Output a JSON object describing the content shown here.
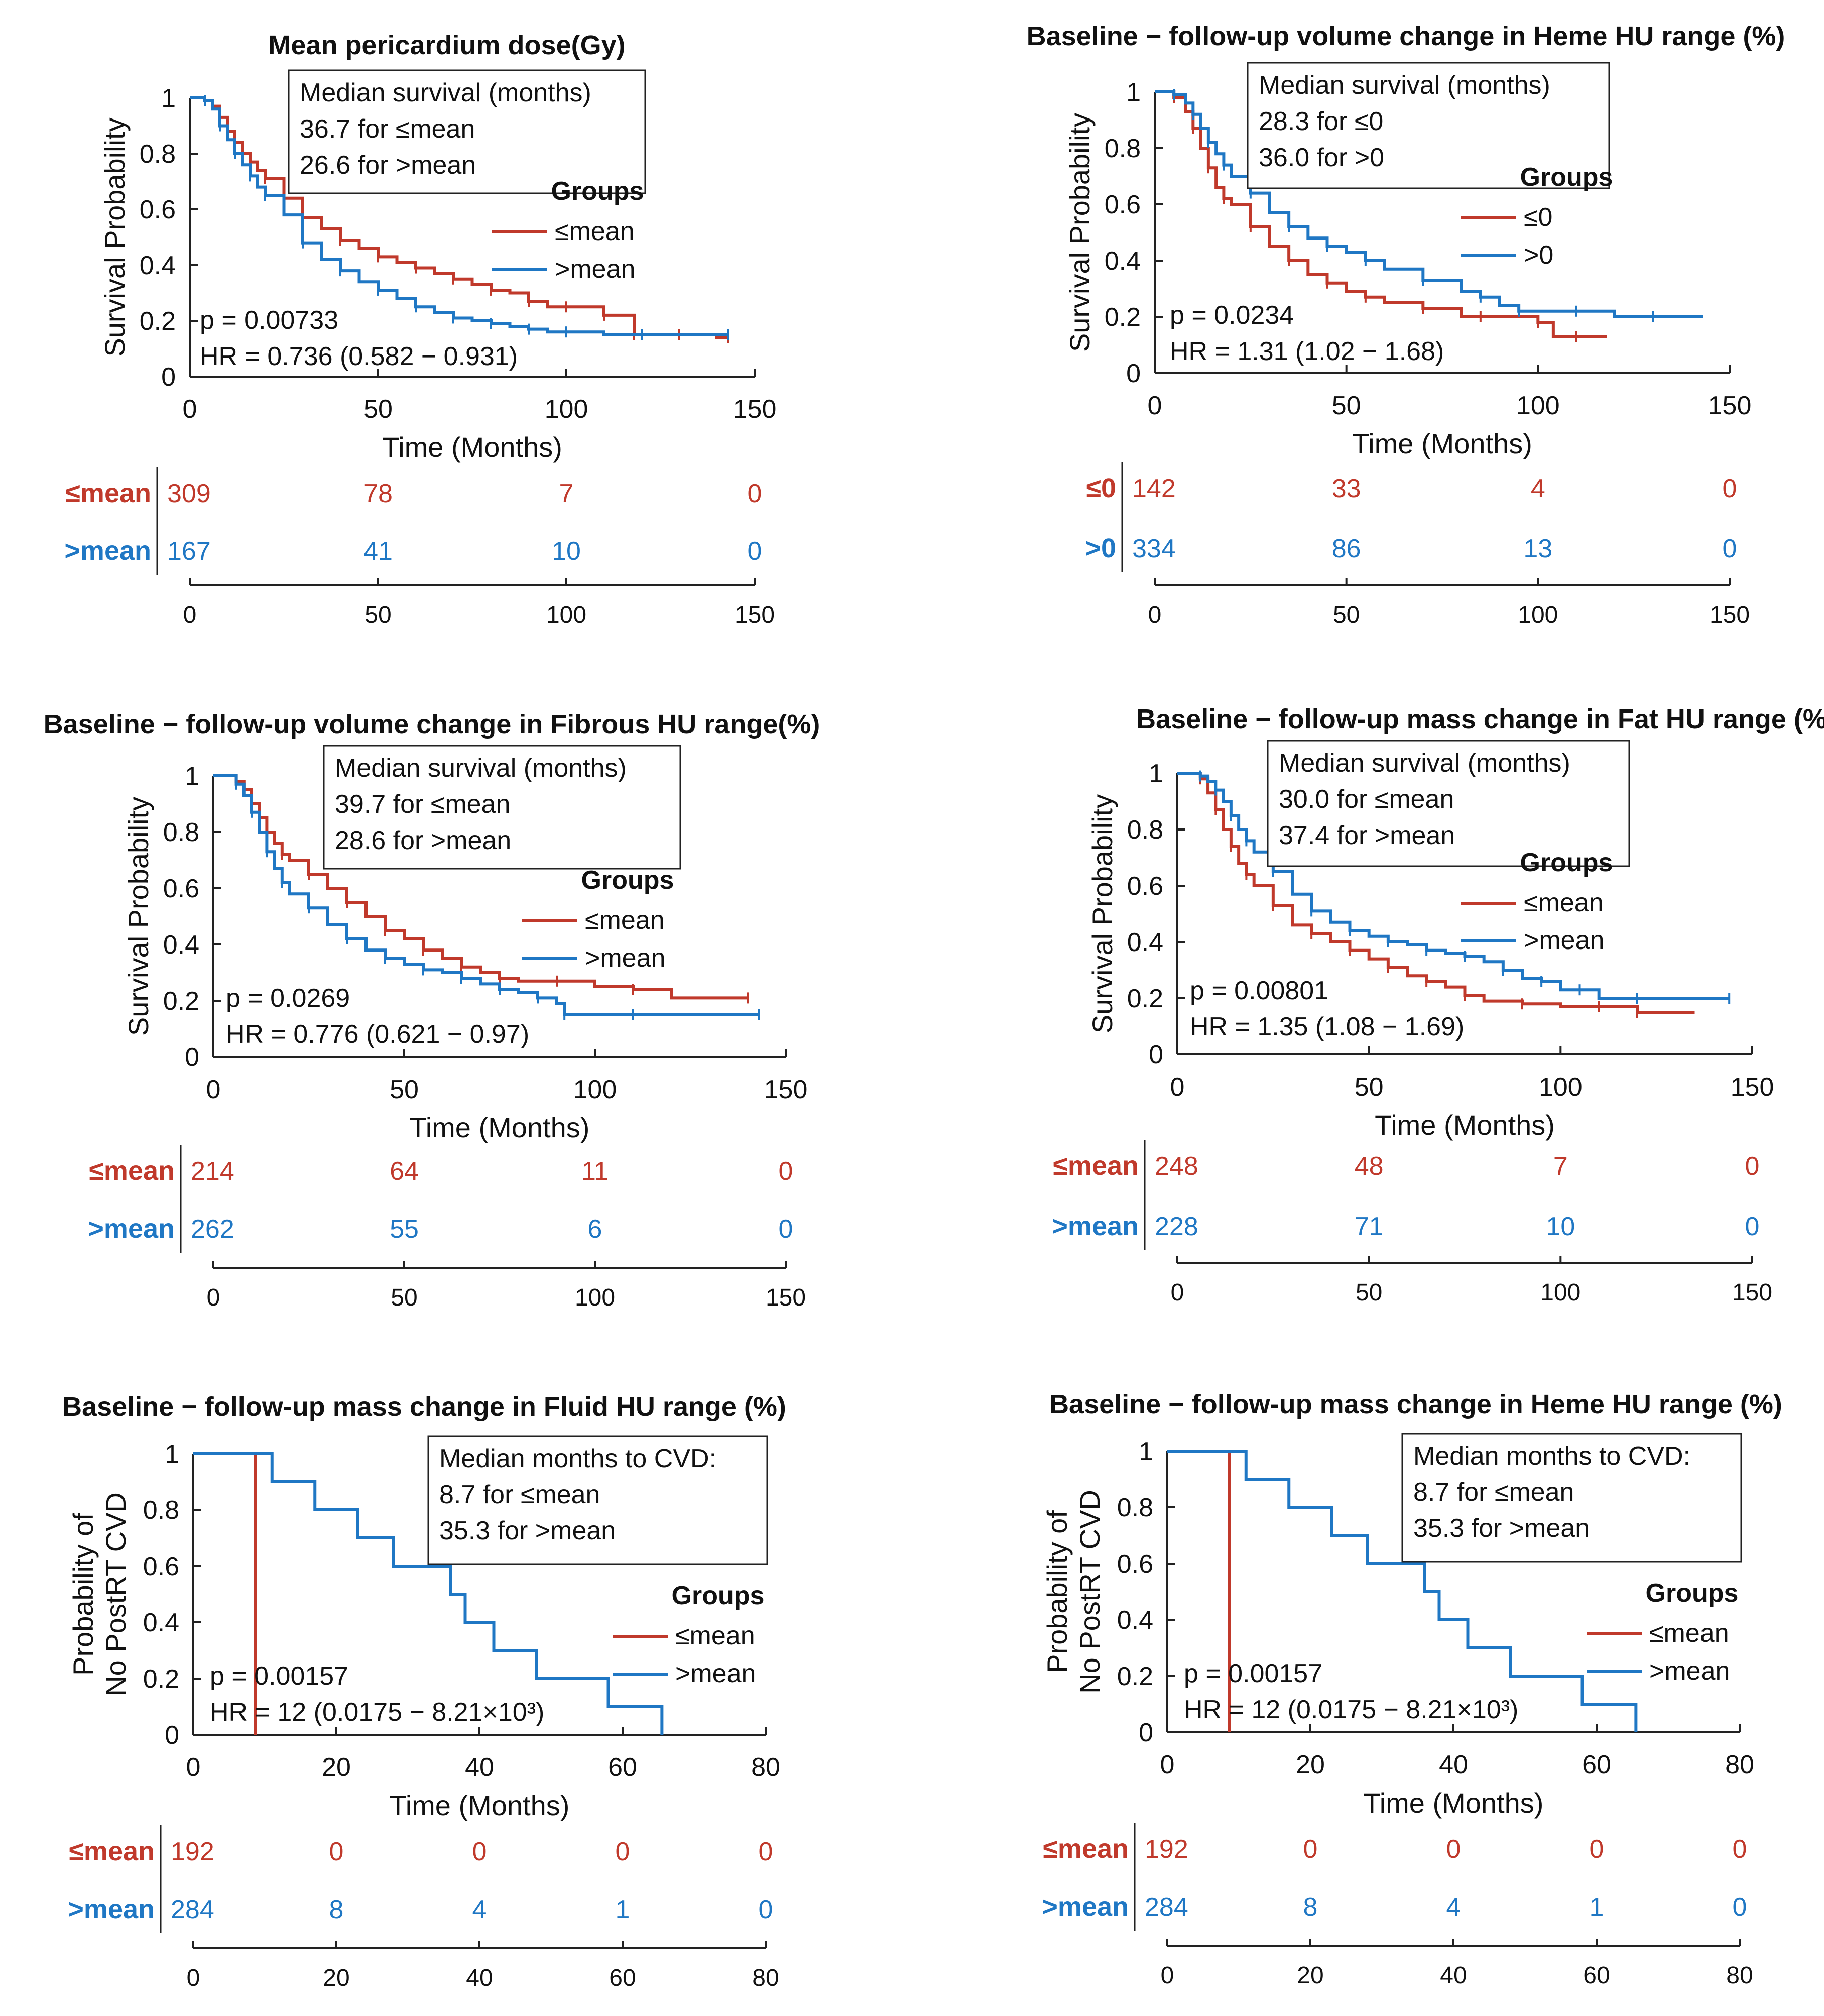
{
  "colors": {
    "group1": "#c0392b",
    "group2": "#1f77c4",
    "axis": "#222222",
    "text": "#111111"
  },
  "chart_data": [
    {
      "type": "line",
      "title": "Mean pericardium dose(Gy)",
      "ylabel_lines": [
        "Survival Probability"
      ],
      "xlabel": "Time (Months)",
      "xlim": [
        0,
        150
      ],
      "xticks": [
        0,
        50,
        100,
        150
      ],
      "ylim": [
        0,
        1
      ],
      "yticks": [
        "0",
        "0.2",
        "0.4",
        "0.6",
        "0.8",
        "1"
      ],
      "median_box": [
        "Median survival (months)",
        "36.7 for ≤mean",
        "26.6 for >mean"
      ],
      "legend_title": "Groups",
      "stats": [
        "p = 0.00733",
        "HR = 0.736 (0.582 − 0.931)"
      ],
      "series": [
        {
          "name": "≤mean",
          "color": "#c0392b",
          "x": [
            0,
            4,
            6,
            8,
            10,
            12,
            14,
            16,
            18,
            20,
            25,
            30,
            35,
            40,
            45,
            50,
            55,
            60,
            65,
            70,
            75,
            80,
            85,
            90,
            95,
            100,
            105,
            110,
            115,
            118,
            120,
            130,
            140,
            143
          ],
          "y": [
            1,
            0.99,
            0.97,
            0.93,
            0.88,
            0.84,
            0.8,
            0.77,
            0.74,
            0.71,
            0.64,
            0.57,
            0.53,
            0.49,
            0.46,
            0.43,
            0.41,
            0.39,
            0.37,
            0.35,
            0.33,
            0.31,
            0.3,
            0.27,
            0.25,
            0.25,
            0.25,
            0.22,
            0.22,
            0.15,
            0.15,
            0.15,
            0.14,
            0.14
          ]
        },
        {
          "name": ">mean",
          "color": "#1f77c4",
          "x": [
            0,
            4,
            6,
            8,
            10,
            12,
            14,
            16,
            18,
            20,
            25,
            30,
            35,
            40,
            45,
            50,
            55,
            60,
            65,
            70,
            75,
            80,
            85,
            90,
            95,
            100,
            110,
            120,
            130,
            143
          ],
          "y": [
            1,
            0.99,
            0.96,
            0.9,
            0.85,
            0.8,
            0.76,
            0.72,
            0.68,
            0.65,
            0.58,
            0.48,
            0.42,
            0.38,
            0.34,
            0.31,
            0.28,
            0.25,
            0.23,
            0.21,
            0.2,
            0.19,
            0.18,
            0.17,
            0.16,
            0.16,
            0.15,
            0.15,
            0.15,
            0.15
          ]
        }
      ],
      "risk_table": {
        "rows": [
          {
            "label": "≤mean",
            "values": [
              309,
              78,
              7,
              0
            ]
          },
          {
            "label": ">mean",
            "values": [
              167,
              41,
              10,
              0
            ]
          }
        ],
        "xticks": [
          0,
          50,
          100,
          150
        ]
      }
    },
    {
      "type": "line",
      "title": "Baseline − follow-up volume change in Heme HU range (%)",
      "ylabel_lines": [
        "Survival Probability"
      ],
      "xlabel": "Time (Months)",
      "xlim": [
        0,
        150
      ],
      "xticks": [
        0,
        50,
        100,
        150
      ],
      "ylim": [
        0,
        1
      ],
      "yticks": [
        "0",
        "0.2",
        "0.4",
        "0.6",
        "0.8",
        "1"
      ],
      "median_box": [
        "Median survival (months)",
        "28.3 for ≤0",
        "36.0 for >0"
      ],
      "legend_title": "Groups",
      "stats": [
        "p = 0.0234",
        "HR = 1.31 (1.02 − 1.68)"
      ],
      "series": [
        {
          "name": "≤0",
          "color": "#c0392b",
          "x": [
            0,
            5,
            8,
            10,
            12,
            14,
            16,
            18,
            20,
            25,
            30,
            35,
            40,
            45,
            50,
            55,
            60,
            70,
            80,
            85,
            90,
            100,
            104,
            110,
            118
          ],
          "y": [
            1,
            0.98,
            0.93,
            0.87,
            0.8,
            0.73,
            0.66,
            0.62,
            0.6,
            0.52,
            0.45,
            0.4,
            0.35,
            0.32,
            0.29,
            0.27,
            0.25,
            0.23,
            0.2,
            0.2,
            0.2,
            0.18,
            0.13,
            0.13,
            0.13
          ]
        },
        {
          "name": ">0",
          "color": "#1f77c4",
          "x": [
            0,
            5,
            8,
            10,
            12,
            14,
            16,
            18,
            20,
            25,
            30,
            35,
            40,
            45,
            50,
            55,
            60,
            70,
            80,
            85,
            90,
            95,
            100,
            110,
            120,
            130,
            143
          ],
          "y": [
            1,
            0.99,
            0.96,
            0.92,
            0.87,
            0.82,
            0.78,
            0.74,
            0.7,
            0.64,
            0.57,
            0.52,
            0.48,
            0.45,
            0.43,
            0.4,
            0.37,
            0.33,
            0.29,
            0.27,
            0.24,
            0.22,
            0.22,
            0.22,
            0.2,
            0.2,
            0.2
          ]
        }
      ],
      "risk_table": {
        "rows": [
          {
            "label": "≤0",
            "values": [
              142,
              33,
              4,
              0
            ]
          },
          {
            "label": ">0",
            "values": [
              334,
              86,
              13,
              0
            ]
          }
        ],
        "xticks": [
          0,
          50,
          100,
          150
        ]
      }
    },
    {
      "type": "line",
      "title": "Baseline − follow-up volume change in Fibrous HU range(%)",
      "ylabel_lines": [
        "Survival Probability"
      ],
      "xlabel": "Time (Months)",
      "xlim": [
        0,
        150
      ],
      "xticks": [
        0,
        50,
        100,
        150
      ],
      "ylim": [
        0,
        1
      ],
      "yticks": [
        "0",
        "0.2",
        "0.4",
        "0.6",
        "0.8",
        "1"
      ],
      "median_box": [
        "Median survival (months)",
        "39.7 for ≤mean",
        "28.6 for >mean"
      ],
      "legend_title": "Groups",
      "stats": [
        "p = 0.0269",
        "HR = 0.776 (0.621 − 0.97)"
      ],
      "series": [
        {
          "name": "≤mean",
          "color": "#c0392b",
          "x": [
            0,
            6,
            8,
            10,
            12,
            14,
            16,
            18,
            20,
            25,
            30,
            35,
            40,
            45,
            50,
            55,
            60,
            65,
            70,
            75,
            80,
            90,
            100,
            110,
            120,
            140
          ],
          "y": [
            1,
            0.98,
            0.95,
            0.9,
            0.85,
            0.8,
            0.76,
            0.72,
            0.7,
            0.65,
            0.6,
            0.55,
            0.5,
            0.45,
            0.42,
            0.38,
            0.35,
            0.32,
            0.3,
            0.28,
            0.27,
            0.27,
            0.25,
            0.24,
            0.21,
            0.21
          ]
        },
        {
          "name": ">mean",
          "color": "#1f77c4",
          "x": [
            0,
            6,
            8,
            10,
            12,
            14,
            16,
            18,
            20,
            25,
            30,
            35,
            40,
            45,
            50,
            55,
            60,
            65,
            70,
            75,
            80,
            85,
            90,
            92,
            100,
            110,
            120,
            143
          ],
          "y": [
            1,
            0.97,
            0.93,
            0.87,
            0.8,
            0.73,
            0.67,
            0.62,
            0.58,
            0.53,
            0.47,
            0.42,
            0.38,
            0.35,
            0.33,
            0.31,
            0.3,
            0.28,
            0.26,
            0.24,
            0.23,
            0.21,
            0.19,
            0.15,
            0.15,
            0.15,
            0.15,
            0.15
          ]
        }
      ],
      "risk_table": {
        "rows": [
          {
            "label": "≤mean",
            "values": [
              214,
              64,
              11,
              0
            ]
          },
          {
            "label": ">mean",
            "values": [
              262,
              55,
              6,
              0
            ]
          }
        ],
        "xticks": [
          0,
          50,
          100,
          150
        ]
      }
    },
    {
      "type": "line",
      "title": "Baseline − follow-up mass change in Fat HU range (%)",
      "ylabel_lines": [
        "Survival Probability"
      ],
      "xlabel": "Time (Months)",
      "xlim": [
        0,
        150
      ],
      "xticks": [
        0,
        50,
        100,
        150
      ],
      "ylim": [
        0,
        1
      ],
      "yticks": [
        "0",
        "0.2",
        "0.4",
        "0.6",
        "0.8",
        "1"
      ],
      "median_box": [
        "Median survival (months)",
        "30.0 for ≤mean",
        "37.4 for >mean"
      ],
      "legend_title": "Groups",
      "stats": [
        "p = 0.00801",
        "HR = 1.35 (1.08 − 1.69)"
      ],
      "series": [
        {
          "name": "≤mean",
          "color": "#c0392b",
          "x": [
            0,
            6,
            8,
            10,
            12,
            14,
            16,
            18,
            20,
            25,
            30,
            35,
            40,
            45,
            50,
            55,
            60,
            65,
            70,
            75,
            80,
            90,
            100,
            110,
            117,
            120,
            135
          ],
          "y": [
            1,
            0.98,
            0.93,
            0.87,
            0.8,
            0.74,
            0.68,
            0.64,
            0.6,
            0.53,
            0.46,
            0.43,
            0.4,
            0.37,
            0.34,
            0.31,
            0.28,
            0.26,
            0.24,
            0.21,
            0.19,
            0.18,
            0.17,
            0.17,
            0.17,
            0.15,
            0.15
          ]
        },
        {
          "name": ">mean",
          "color": "#1f77c4",
          "x": [
            0,
            6,
            8,
            10,
            12,
            14,
            16,
            18,
            20,
            25,
            30,
            35,
            40,
            45,
            50,
            55,
            60,
            65,
            70,
            75,
            80,
            85,
            90,
            95,
            100,
            105,
            110,
            120,
            130,
            144
          ],
          "y": [
            1,
            0.99,
            0.97,
            0.94,
            0.9,
            0.85,
            0.8,
            0.76,
            0.72,
            0.65,
            0.57,
            0.51,
            0.47,
            0.44,
            0.42,
            0.4,
            0.39,
            0.37,
            0.36,
            0.35,
            0.33,
            0.3,
            0.27,
            0.26,
            0.23,
            0.23,
            0.2,
            0.2,
            0.2,
            0.2
          ]
        }
      ],
      "risk_table": {
        "rows": [
          {
            "label": "≤mean",
            "values": [
              248,
              48,
              7,
              0
            ]
          },
          {
            "label": ">mean",
            "values": [
              228,
              71,
              10,
              0
            ]
          }
        ],
        "xticks": [
          0,
          50,
          100,
          150
        ]
      }
    },
    {
      "type": "line",
      "title": "Baseline − follow-up mass change in Fluid HU range (%)",
      "ylabel_lines": [
        "Probability of",
        "No PostRT CVD"
      ],
      "xlabel": "Time (Months)",
      "xlim": [
        0,
        80
      ],
      "xticks": [
        0,
        20,
        40,
        60,
        80
      ],
      "ylim": [
        0,
        1
      ],
      "yticks": [
        "0",
        "0.2",
        "0.4",
        "0.6",
        "0.8",
        "1"
      ],
      "median_box": [
        "Median months to CVD:",
        "8.7 for ≤mean",
        "35.3 for >mean"
      ],
      "legend_title": "Groups",
      "stats": [
        "p = 0.00157",
        "HR = 12 (0.0175 − 8.21×10³)"
      ],
      "series": [
        {
          "name": "≤mean",
          "color": "#c0392b",
          "x": [
            0,
            8.7,
            8.7
          ],
          "y": [
            1,
            1,
            0
          ]
        },
        {
          "name": ">mean",
          "color": "#1f77c4",
          "x": [
            0,
            11,
            11,
            17,
            17,
            23,
            23,
            28,
            28,
            36,
            36,
            38,
            38,
            42,
            42,
            48,
            48,
            58,
            58,
            65.5,
            65.5
          ],
          "y": [
            1,
            1,
            0.9,
            0.9,
            0.8,
            0.8,
            0.7,
            0.7,
            0.6,
            0.6,
            0.5,
            0.5,
            0.4,
            0.4,
            0.3,
            0.3,
            0.2,
            0.2,
            0.1,
            0.1,
            0
          ]
        }
      ],
      "risk_table": {
        "rows": [
          {
            "label": "≤mean",
            "values": [
              192,
              0,
              0,
              0,
              0
            ]
          },
          {
            "label": ">mean",
            "values": [
              284,
              8,
              4,
              1,
              0
            ]
          }
        ],
        "xticks": [
          0,
          20,
          40,
          60,
          80
        ]
      }
    },
    {
      "type": "line",
      "title": "Baseline − follow-up mass change in Heme HU range (%)",
      "ylabel_lines": [
        "Probability of",
        "No PostRT CVD"
      ],
      "xlabel": "Time (Months)",
      "xlim": [
        0,
        80
      ],
      "xticks": [
        0,
        20,
        40,
        60,
        80
      ],
      "ylim": [
        0,
        1
      ],
      "yticks": [
        "0",
        "0.2",
        "0.4",
        "0.6",
        "0.8",
        "1"
      ],
      "median_box": [
        "Median months to CVD:",
        "8.7 for ≤mean",
        "35.3 for >mean"
      ],
      "legend_title": "Groups",
      "stats": [
        "p = 0.00157",
        "HR = 12 (0.0175 − 8.21×10³)"
      ],
      "series": [
        {
          "name": "≤mean",
          "color": "#c0392b",
          "x": [
            0,
            8.7,
            8.7
          ],
          "y": [
            1,
            1,
            0
          ]
        },
        {
          "name": ">mean",
          "color": "#1f77c4",
          "x": [
            0,
            11,
            11,
            17,
            17,
            23,
            23,
            28,
            28,
            36,
            36,
            38,
            38,
            42,
            42,
            48,
            48,
            58,
            58,
            65.5,
            65.5
          ],
          "y": [
            1,
            1,
            0.9,
            0.9,
            0.8,
            0.8,
            0.7,
            0.7,
            0.6,
            0.6,
            0.5,
            0.5,
            0.4,
            0.4,
            0.3,
            0.3,
            0.2,
            0.2,
            0.1,
            0.1,
            0
          ]
        }
      ],
      "risk_table": {
        "rows": [
          {
            "label": "≤mean",
            "values": [
              192,
              0,
              0,
              0,
              0
            ]
          },
          {
            "label": ">mean",
            "values": [
              284,
              8,
              4,
              1,
              0
            ]
          }
        ],
        "xticks": [
          0,
          20,
          40,
          60,
          80
        ]
      }
    }
  ]
}
